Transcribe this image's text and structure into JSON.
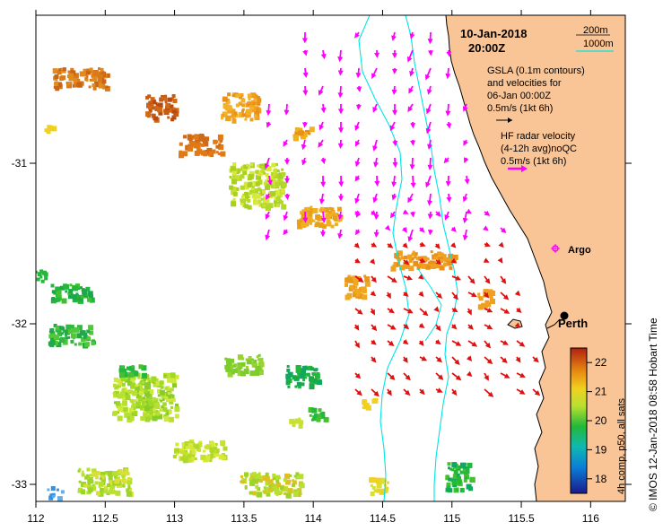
{
  "title": {
    "date": "10-Jan-2018",
    "time": "20:00Z"
  },
  "contour_legend": {
    "line1": "200m",
    "line2": "1000m"
  },
  "gsla_legend": {
    "line1": "GSLA (0.1m contours)",
    "line2": "and velocities for",
    "line3": "06-Jan 00:00Z",
    "line4": "0.5m/s (1kt 6h)"
  },
  "hf_legend": {
    "line1": "HF radar velocity",
    "line2": "(4-12h avg)noQC",
    "line3": "0.5m/s (1kt 6h)"
  },
  "places": {
    "argo": "Argo",
    "perth": "Perth"
  },
  "axes": {
    "x_ticks": [
      "112",
      "112.5",
      "113",
      "113.5",
      "114",
      "114.5",
      "115",
      "115.5",
      "116"
    ],
    "y_ticks": [
      "-31",
      "-32",
      "-33"
    ]
  },
  "colorbar": {
    "label": "4h comp, p50, all sats",
    "ticks": [
      "22",
      "21",
      "20",
      "19",
      "18"
    ],
    "range": [
      17.5,
      22.5
    ]
  },
  "credit": "© IMOS 12-Jan-2018 08:58 Hobart Time",
  "colors": {
    "land": "#f9c597",
    "radar_arrows": "#ff00ff",
    "radar_arrows_south": "#dd1111",
    "bathymetry": "#00e5e5",
    "legend_arrow_gsla": "#000000"
  }
}
